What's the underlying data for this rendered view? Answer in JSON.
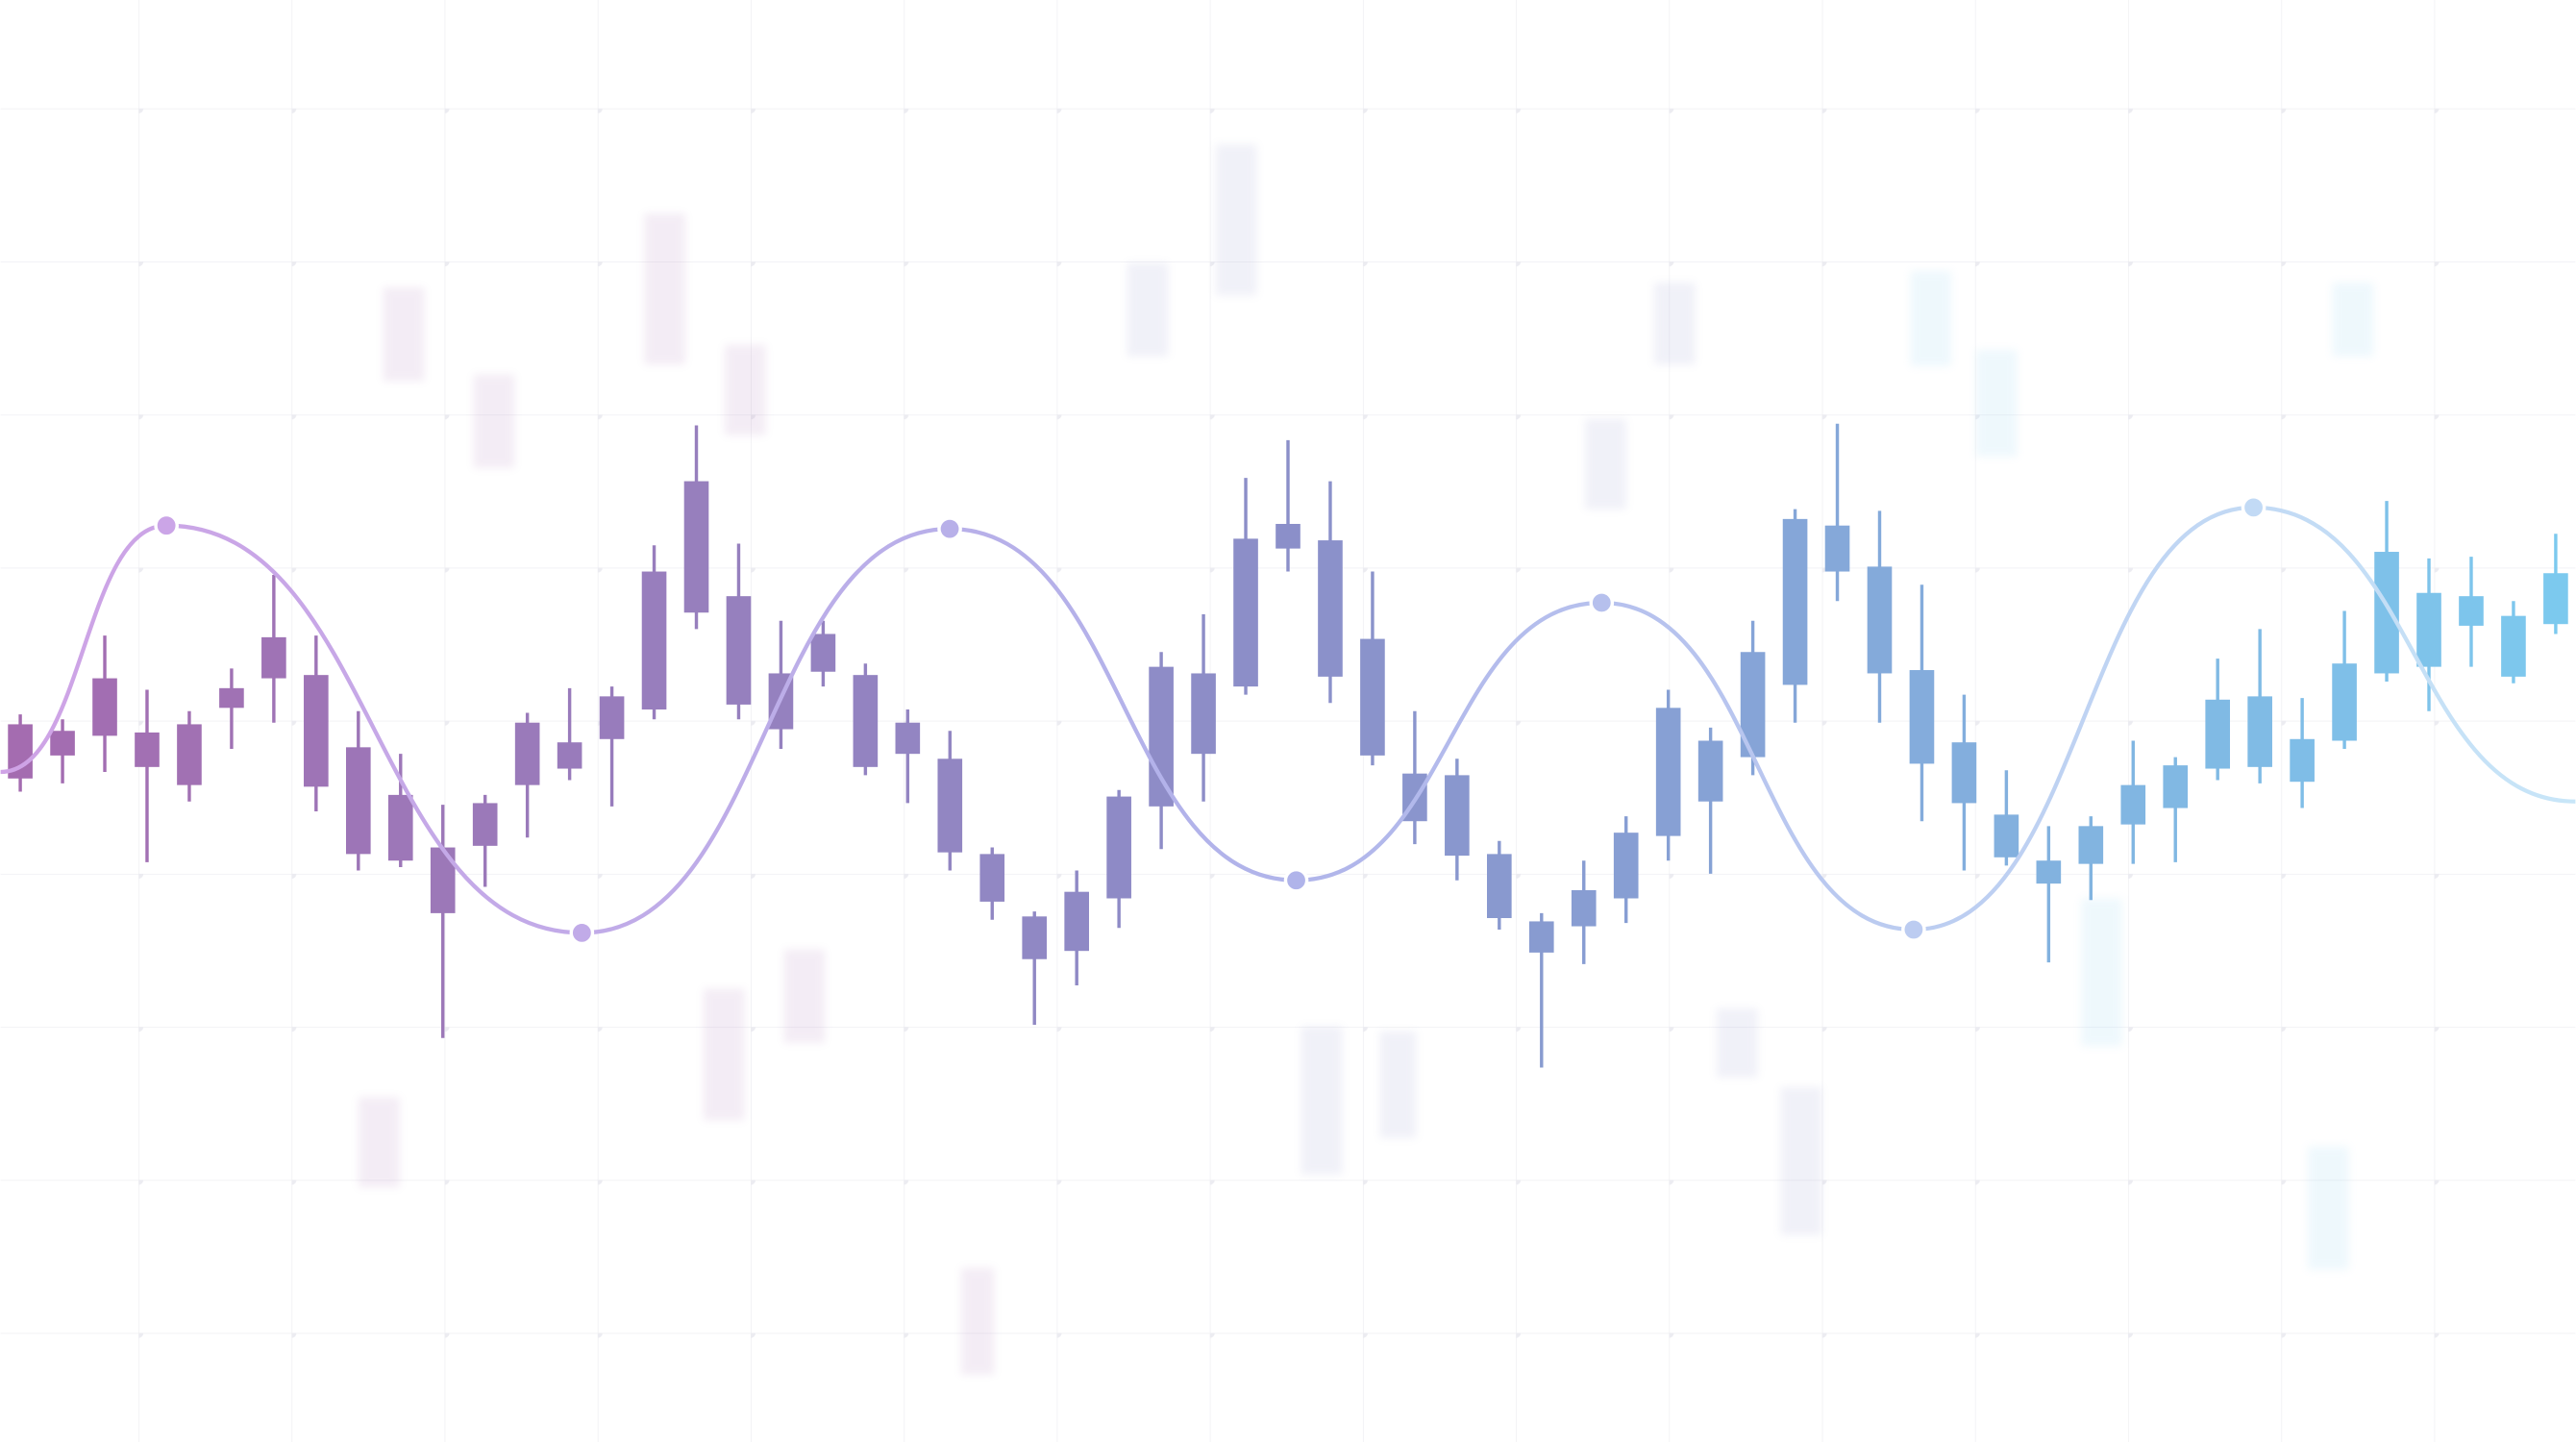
{
  "chart_data": {
    "type": "candlestick",
    "xlim": [
      0,
      1568
    ],
    "ylim": [
      0,
      878
    ],
    "colors": [
      "#a46cb0",
      "#8b8fc9",
      "#7cc9ee"
    ],
    "open": [
      404,
      418,
      430,
      411,
      400,
      447,
      465,
      399,
      358,
      354,
      322,
      363,
      400,
      410,
      428,
      446,
      505,
      449,
      434,
      469,
      411,
      419,
      359,
      329,
      294,
      299,
      331,
      387,
      419,
      460,
      544,
      466,
      418,
      378,
      357,
      319,
      298,
      314,
      331,
      369,
      390,
      417,
      461,
      530,
      468,
      413,
      389,
      356,
      340,
      352,
      376,
      386,
      410,
      411,
      402,
      427,
      468,
      472,
      497,
      466,
      498
    ],
    "high": [
      443,
      440,
      491,
      458,
      445,
      471,
      528,
      491,
      445,
      419,
      388,
      394,
      444,
      459,
      460,
      546,
      619,
      547,
      500,
      500,
      474,
      446,
      433,
      362,
      323,
      348,
      397,
      481,
      504,
      587,
      610,
      585,
      530,
      445,
      416,
      366,
      322,
      354,
      381,
      458,
      435,
      500,
      568,
      620,
      567,
      522,
      455,
      409,
      375,
      381,
      427,
      417,
      477,
      495,
      453,
      506,
      573,
      538,
      539,
      512,
      553
    ],
    "low": [
      396,
      401,
      408,
      353,
      390,
      422,
      438,
      384,
      348,
      350,
      246,
      338,
      368,
      403,
      387,
      440,
      495,
      440,
      422,
      460,
      406,
      389,
      348,
      318,
      254,
      278,
      313,
      361,
      390,
      455,
      530,
      450,
      412,
      364,
      342,
      312,
      228,
      291,
      316,
      354,
      346,
      406,
      438,
      512,
      438,
      378,
      348,
      351,
      292,
      330,
      352,
      353,
      403,
      401,
      386,
      422,
      463,
      445,
      472,
      462,
      492
    ],
    "close": [
      437,
      433,
      465,
      432,
      437,
      459,
      490,
      467,
      423,
      394,
      362,
      389,
      438,
      426,
      454,
      530,
      585,
      515,
      468,
      492,
      467,
      438,
      416,
      358,
      320,
      335,
      393,
      472,
      468,
      550,
      559,
      549,
      489,
      407,
      406,
      358,
      317,
      336,
      371,
      447,
      427,
      481,
      562,
      558,
      533,
      470,
      426,
      382,
      354,
      375,
      400,
      412,
      452,
      454,
      428,
      474,
      542,
      517,
      515,
      503,
      529
    ],
    "line": {
      "type": "line",
      "colors": [
        "#cfa3e6",
        "#b0b4ea",
        "#c8e6f8"
      ],
      "x": [
        0,
        101,
        354,
        578,
        789,
        975,
        1165,
        1372,
        1568
      ],
      "values": [
        408,
        558,
        310,
        556,
        342,
        511,
        312,
        569,
        390
      ]
    }
  }
}
